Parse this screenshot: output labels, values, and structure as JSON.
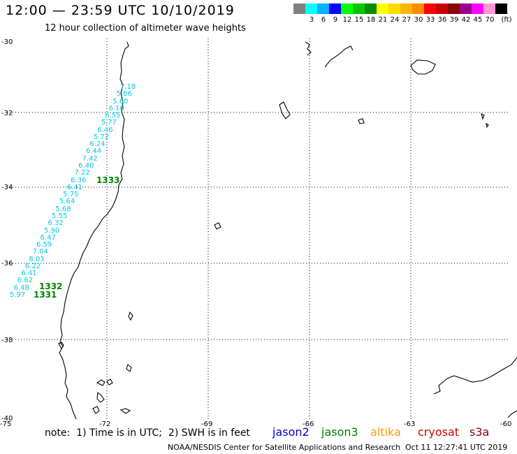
{
  "header": {
    "title": "12:00 — 23:59 UTC 10/10/2019",
    "subtitle": "12 hour collection of altimeter wave heights"
  },
  "color_scale": {
    "unit": "(ft)",
    "swatches": [
      {
        "color": "#808080",
        "label": ""
      },
      {
        "color": "#00ffff",
        "label": "3"
      },
      {
        "color": "#00b4ff",
        "label": "6"
      },
      {
        "color": "#0000ff",
        "label": "9"
      },
      {
        "color": "#00ff00",
        "label": "12"
      },
      {
        "color": "#00c800",
        "label": "15"
      },
      {
        "color": "#008c00",
        "label": "18"
      },
      {
        "color": "#ffff00",
        "label": "21"
      },
      {
        "color": "#ffdc00",
        "label": "24"
      },
      {
        "color": "#ffb400",
        "label": "27"
      },
      {
        "color": "#ff8c00",
        "label": "30"
      },
      {
        "color": "#ff0000",
        "label": "33"
      },
      {
        "color": "#c80000",
        "label": "36"
      },
      {
        "color": "#8b0000",
        "label": "39"
      },
      {
        "color": "#9b008b",
        "label": "42"
      },
      {
        "color": "#ff00ff",
        "label": "45"
      },
      {
        "color": "#ff96d2",
        "label": "70"
      },
      {
        "color": "#000000",
        "label": ""
      }
    ]
  },
  "axes": {
    "lat_labels": [
      "-30",
      "-32",
      "-34",
      "-36",
      "-38",
      "-40"
    ],
    "lon_labels": [
      "-75",
      "-72",
      "-69",
      "-66",
      "-63",
      "-60"
    ]
  },
  "observations": {
    "jason3_color": "#008000",
    "other_color": "#00c8e6",
    "values": [
      "7.18",
      "5.86",
      "5.60",
      "6.10",
      "6.55",
      "5.77",
      "6.46",
      "5.72",
      "6.24",
      "6.44",
      "7.42",
      "6.40",
      "7.22",
      "6.36",
      "6.41",
      "5.75",
      "5.64",
      "5.68",
      "5.55",
      "6.32",
      "5.90",
      "6.47",
      "6.59",
      "7.04",
      "8.03",
      "6.22",
      "6.41",
      "6.62",
      "6.48",
      "5.97"
    ],
    "times": [
      "1333",
      "1332",
      "1331"
    ]
  },
  "footer": {
    "note": "note:  1) Time is in UTC;  2) SWH is in feet",
    "missions": [
      {
        "name": "jason2",
        "color": "#0000cc"
      },
      {
        "name": "jason3",
        "color": "#008000"
      },
      {
        "name": "altika",
        "color": "#ff9900"
      },
      {
        "name": "cryosat",
        "color": "#cc0000"
      },
      {
        "name": "s3a",
        "color": "#800000"
      }
    ],
    "credit": "NOAA/NESDIS Center for Satellite Applications and Research",
    "timestamp": "Oct 11 12:27:41 UTC 2019"
  }
}
